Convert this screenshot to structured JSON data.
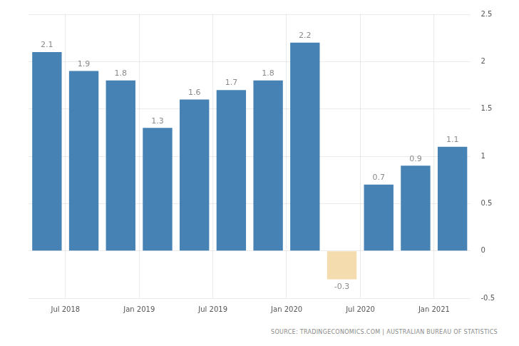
{
  "chart_data": {
    "type": "bar",
    "categories": [
      "Jul 2018",
      null,
      "Jan 2019",
      null,
      "Jul 2019",
      null,
      "Jan 2020",
      null,
      "Jul 2020",
      null,
      "Jan 2021",
      null
    ],
    "values": [
      2.1,
      1.9,
      1.8,
      1.3,
      1.6,
      1.7,
      1.8,
      2.2,
      -0.3,
      0.7,
      0.9,
      1.1
    ],
    "colors": [
      "#4682b4",
      "#4682b4",
      "#4682b4",
      "#4682b4",
      "#4682b4",
      "#4682b4",
      "#4682b4",
      "#4682b4",
      "#f5dcae",
      "#4682b4",
      "#4682b4",
      "#4682b4"
    ],
    "ylim": [
      -0.5,
      2.5
    ],
    "yticks": [
      -0.5,
      0,
      0.5,
      1,
      1.5,
      2,
      2.5
    ],
    "grid": true,
    "data_labels": true,
    "source": "SOURCE: TRADINGECONOMICS.COM | AUSTRALIAN BUREAU OF STATISTICS"
  }
}
